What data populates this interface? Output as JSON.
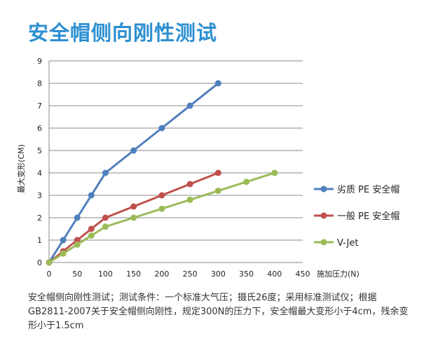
{
  "chart_data": {
    "type": "line",
    "title": "安全帽侧向刚性测试",
    "xlabel": "施加压力(N)",
    "ylabel": "最大变形(CM)",
    "xlim": [
      0,
      450
    ],
    "ylim": [
      0,
      9
    ],
    "x_ticks": [
      "0",
      "50",
      "100",
      "150",
      "200",
      "250",
      "300",
      "350",
      "400",
      "450"
    ],
    "y_ticks": [
      "0",
      "1",
      "2",
      "3",
      "4",
      "5",
      "6",
      "7",
      "8",
      "9"
    ],
    "grid": "horizontal",
    "legend_position": "right",
    "series": [
      {
        "name": "劣质 PE 安全帽",
        "color": "#4f7fbd",
        "x": [
          0,
          25,
          50,
          75,
          100,
          150,
          200,
          250,
          300
        ],
        "y": [
          0,
          1,
          2,
          3,
          4,
          5,
          6,
          7,
          8
        ]
      },
      {
        "name": "一般 PE 安全帽",
        "color": "#c0504d",
        "x": [
          0,
          25,
          50,
          75,
          100,
          150,
          200,
          250,
          300
        ],
        "y": [
          0,
          0.5,
          1,
          1.5,
          2,
          2.5,
          3,
          3.5,
          4
        ]
      },
      {
        "name": "V-Jet",
        "color": "#9bbb59",
        "x": [
          0,
          25,
          50,
          75,
          100,
          150,
          200,
          250,
          300,
          350,
          400
        ],
        "y": [
          0,
          0.4,
          0.8,
          1.2,
          1.6,
          2.0,
          2.4,
          2.8,
          3.2,
          3.6,
          4.0
        ]
      }
    ]
  },
  "note": "安全帽侧向刚性测试；测试条件：一个标准大气压；摄氏26度；采用标准测试仪；根据GB2811-2007关于安全帽侧向刚性，规定300N的压力下，安全帽最大变形小于4cm，残余变形小于1.5cm"
}
